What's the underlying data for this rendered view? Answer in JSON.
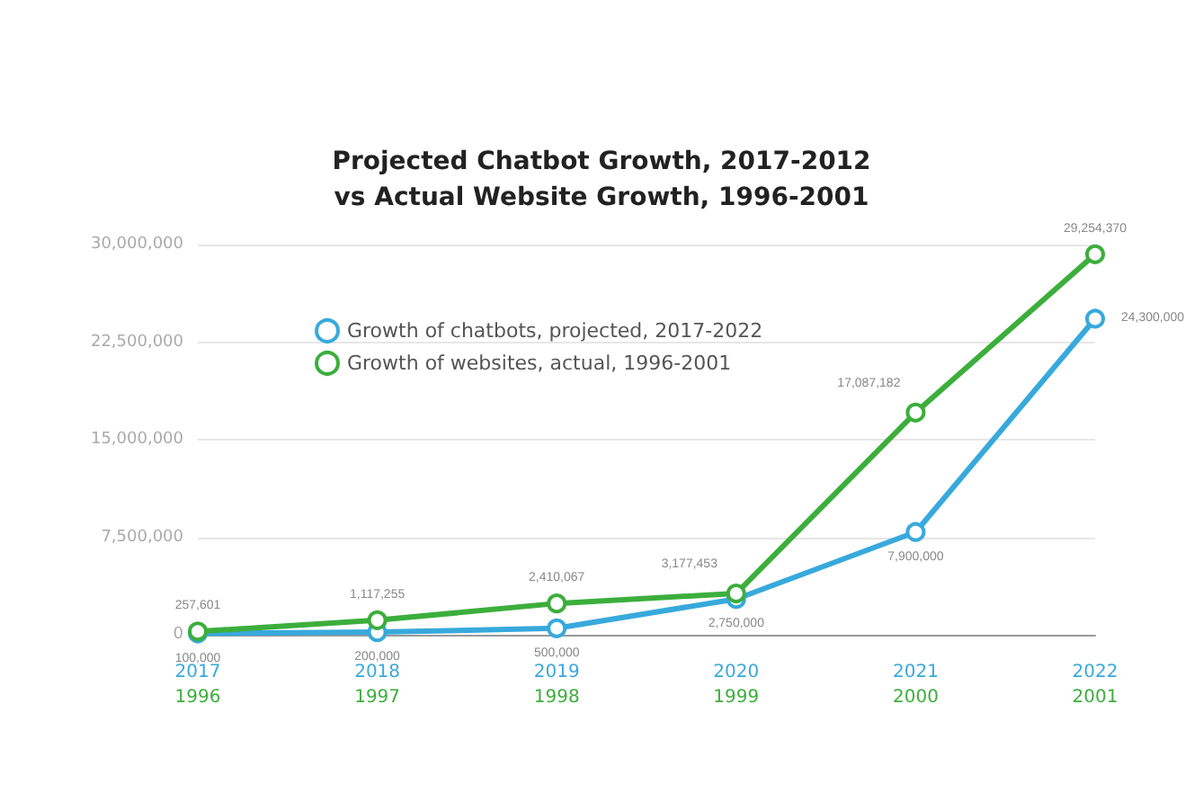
{
  "chart_data": {
    "type": "line",
    "title": "Projected Chatbot Growth, 2017-2012\nvs Actual Website Growth, 1996-2001",
    "categories": [
      "2017\n1996",
      "2018\n1997",
      "2019\n1998",
      "2020\n1999",
      "2021\n2000",
      "2022\n2001"
    ],
    "series": [
      {
        "name": "Growth of chatbots, projected, 2017-2022",
        "color": "#38a9dc",
        "values": [
          100000,
          200000,
          500000,
          2750000,
          7900000,
          24300000
        ],
        "value_labels": [
          "100,000",
          "200,000",
          "500,000",
          "2,750,000",
          "7,900,000",
          "24,300,000"
        ]
      },
      {
        "name": "Growth of websites, actual, 1996-2001",
        "color": "#3cae3c",
        "values": [
          257601,
          1117255,
          2410067,
          3177453,
          17087182,
          29254370
        ],
        "value_labels": [
          "257,601",
          "1,117,255",
          "2,410,067",
          "3,177,453",
          "17,087,182",
          "29,254,370"
        ]
      }
    ],
    "ylim": [
      0,
      30000000
    ],
    "yticks": [
      0,
      {
        "value": 7500000,
        "label": "7,500,000"
      },
      {
        "value": 15000000,
        "label": "15,000,000"
      },
      {
        "value": 22500000,
        "label": "22,500,000"
      },
      {
        "value": 30000000,
        "label": "30,000,000"
      }
    ],
    "grid": "y",
    "legend": "top left",
    "marker": "circle"
  }
}
